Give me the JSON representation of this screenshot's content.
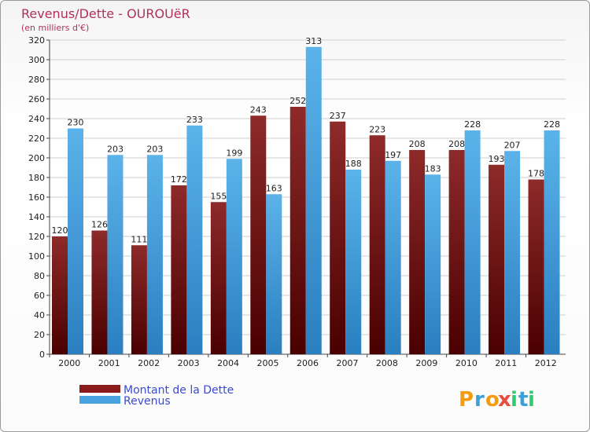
{
  "chart_data": {
    "type": "bar",
    "title": "Revenus/Dette - OUROUëR",
    "subtitle": "(en milliers d'€)",
    "categories": [
      "2000",
      "2001",
      "2002",
      "2003",
      "2004",
      "2005",
      "2006",
      "2007",
      "2008",
      "2009",
      "2010",
      "2011",
      "2012"
    ],
    "series": [
      {
        "name": "Montant de la Dette",
        "color": "#8b1a1a",
        "values": [
          120,
          126,
          111,
          172,
          155,
          243,
          252,
          237,
          223,
          208,
          208,
          193,
          178
        ]
      },
      {
        "name": "Revenus",
        "color": "#4aa3df",
        "values": [
          230,
          203,
          203,
          233,
          199,
          163,
          313,
          188,
          197,
          183,
          228,
          207,
          228
        ]
      }
    ],
    "yticks": [
      "0",
      "20",
      "40",
      "60",
      "80",
      "100",
      "120",
      "140",
      "160",
      "180",
      "200",
      "220",
      "240",
      "260",
      "280",
      "300",
      "320"
    ],
    "ylim": [
      0,
      320
    ],
    "grid": true,
    "legend_position": "bottom-left"
  },
  "logo": {
    "letters": [
      "P",
      "r",
      "o",
      "x",
      "i",
      "t",
      "i"
    ],
    "colors": [
      "#f39c12",
      "#3aa0d8",
      "#f39c12",
      "#e74c3c",
      "#2ecc71",
      "#3aa0d8",
      "#2ecc71"
    ]
  }
}
